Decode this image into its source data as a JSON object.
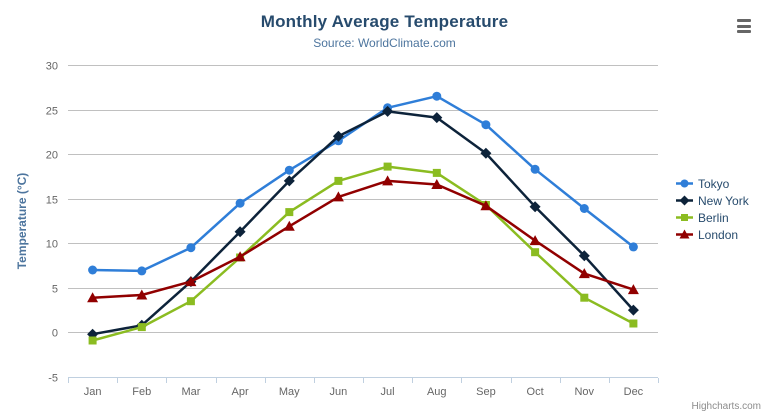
{
  "header": {
    "title": "Monthly Average Temperature",
    "subtitle": "Source: WorldClimate.com"
  },
  "export_menu": {
    "icon": "hamburger-menu-icon"
  },
  "credits": {
    "label": "Highcharts.com"
  },
  "colors": {
    "title": "#274b6d",
    "subtitle": "#4d759e",
    "axis_title": "#4d759e",
    "axis_labels": "#666666",
    "gridline": "#c0c0c0",
    "axis_line": "#c0d0e0",
    "legend_text": "#274b6d",
    "credits_text": "#8c8c8c"
  },
  "chart_data": {
    "type": "line",
    "title": "Monthly Average Temperature",
    "subtitle": "Source: WorldClimate.com",
    "xlabel": "",
    "ylabel": "Temperature (°C)",
    "ylim": [
      -5,
      30
    ],
    "ytick_step": 5,
    "grid": true,
    "legend_position": "right",
    "categories": [
      "Jan",
      "Feb",
      "Mar",
      "Apr",
      "May",
      "Jun",
      "Jul",
      "Aug",
      "Sep",
      "Oct",
      "Nov",
      "Dec"
    ],
    "series": [
      {
        "name": "Tokyo",
        "color": "#2f7ed8",
        "marker": "circle",
        "values": [
          7.0,
          6.9,
          9.5,
          14.5,
          18.2,
          21.5,
          25.2,
          26.5,
          23.3,
          18.3,
          13.9,
          9.6
        ]
      },
      {
        "name": "New York",
        "color": "#0d233a",
        "marker": "diamond",
        "values": [
          -0.2,
          0.8,
          5.7,
          11.3,
          17.0,
          22.0,
          24.8,
          24.1,
          20.1,
          14.1,
          8.6,
          2.5
        ]
      },
      {
        "name": "Berlin",
        "color": "#8bbc21",
        "marker": "square",
        "values": [
          -0.9,
          0.6,
          3.5,
          8.4,
          13.5,
          17.0,
          18.6,
          17.9,
          14.3,
          9.0,
          3.9,
          1.0
        ]
      },
      {
        "name": "London",
        "color": "#910000",
        "marker": "triangle",
        "values": [
          3.9,
          4.2,
          5.7,
          8.5,
          11.9,
          15.2,
          17.0,
          16.6,
          14.2,
          10.3,
          6.6,
          4.8
        ]
      }
    ]
  }
}
